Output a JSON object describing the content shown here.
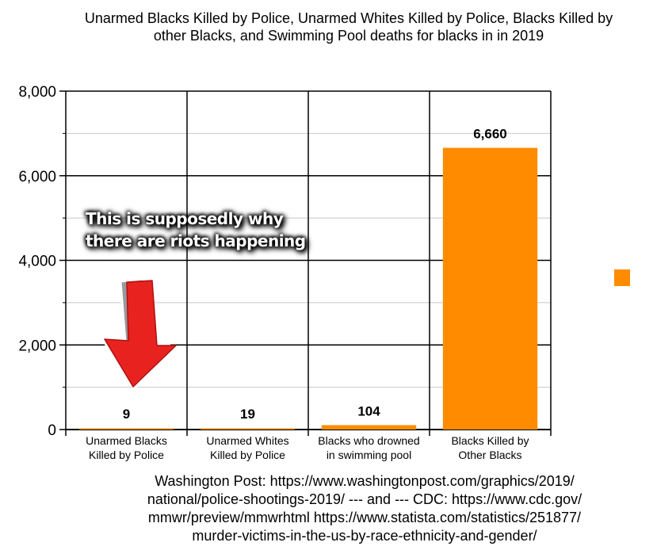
{
  "chart_data": {
    "type": "bar",
    "title": "Unarmed Blacks Killed by Police, Unarmed Whites Killed by Police, Blacks Killed by other Blacks, and Swimming Pool deaths for blacks in in 2019",
    "categories": [
      [
        "Unarmed Blacks",
        "Killed by Police"
      ],
      [
        "Unarmed Whites",
        "Killed by Police"
      ],
      [
        "Blacks who drowned",
        "in swimming pool"
      ],
      [
        "Blacks Killed by",
        "Other Blacks"
      ]
    ],
    "values": [
      9,
      19,
      104,
      6660
    ],
    "data_labels": [
      "9",
      "19",
      "104",
      "6,660"
    ],
    "yticks": [
      0,
      2000,
      4000,
      6000,
      8000
    ],
    "ytick_labels": [
      "0",
      "2,000",
      "4,000",
      "6,000",
      "8,000"
    ],
    "ylim": [
      0,
      8000
    ],
    "xlabel": "",
    "ylabel": "",
    "grid": true,
    "bar_color": "#ff8c00",
    "legend": "right"
  },
  "annotation": {
    "line1": "This is supposedly why",
    "line2": "there are riots happening",
    "arrow_color": "#e8231f"
  },
  "source": {
    "line1": "Washington Post: https://www.washingtonpost.com/graphics/2019/",
    "line2": "national/police-shootings-2019/ --- and --- CDC: https://www.cdc.gov/",
    "line3": "mmwr/preview/mmwrhtml https://www.statista.com/statistics/251877/",
    "line4": "murder-victims-in-the-us-by-race-ethnicity-and-gender/"
  }
}
